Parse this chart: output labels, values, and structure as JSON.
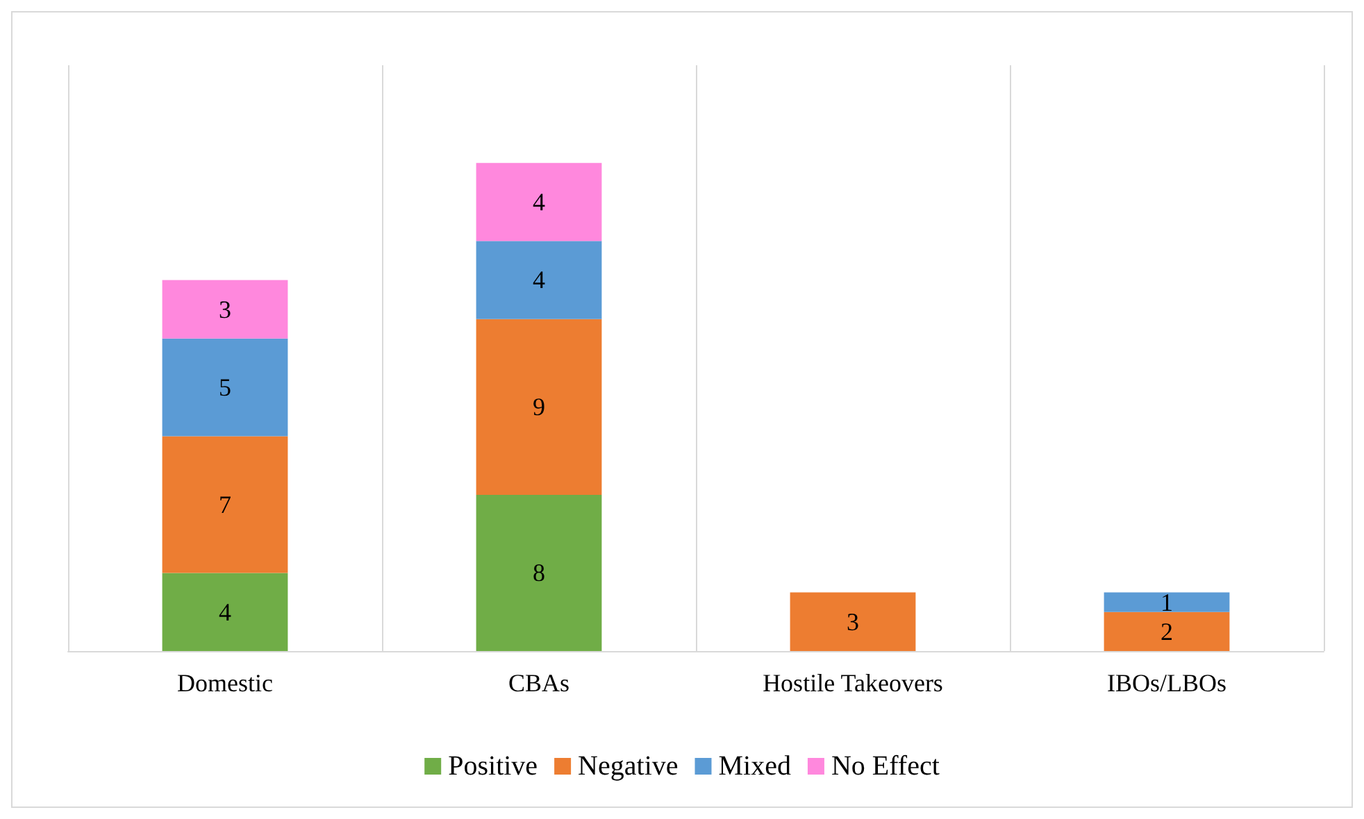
{
  "chart_data": {
    "type": "bar",
    "stacked": true,
    "categories": [
      "Domestic",
      "CBAs",
      "Hostile Takeovers",
      "IBOs/LBOs"
    ],
    "series": [
      {
        "name": "Positive",
        "color": "#70ad47",
        "values": [
          4,
          8,
          null,
          null
        ]
      },
      {
        "name": "Negative",
        "color": "#ed7d31",
        "values": [
          7,
          9,
          3,
          2
        ]
      },
      {
        "name": "Mixed",
        "color": "#5b9bd5",
        "values": [
          5,
          4,
          null,
          1
        ]
      },
      {
        "name": "No Effect",
        "color": "#ff88dd",
        "values": [
          3,
          4,
          null,
          null
        ]
      }
    ],
    "data_labels": true,
    "grid": "x",
    "legend": "bottom"
  }
}
